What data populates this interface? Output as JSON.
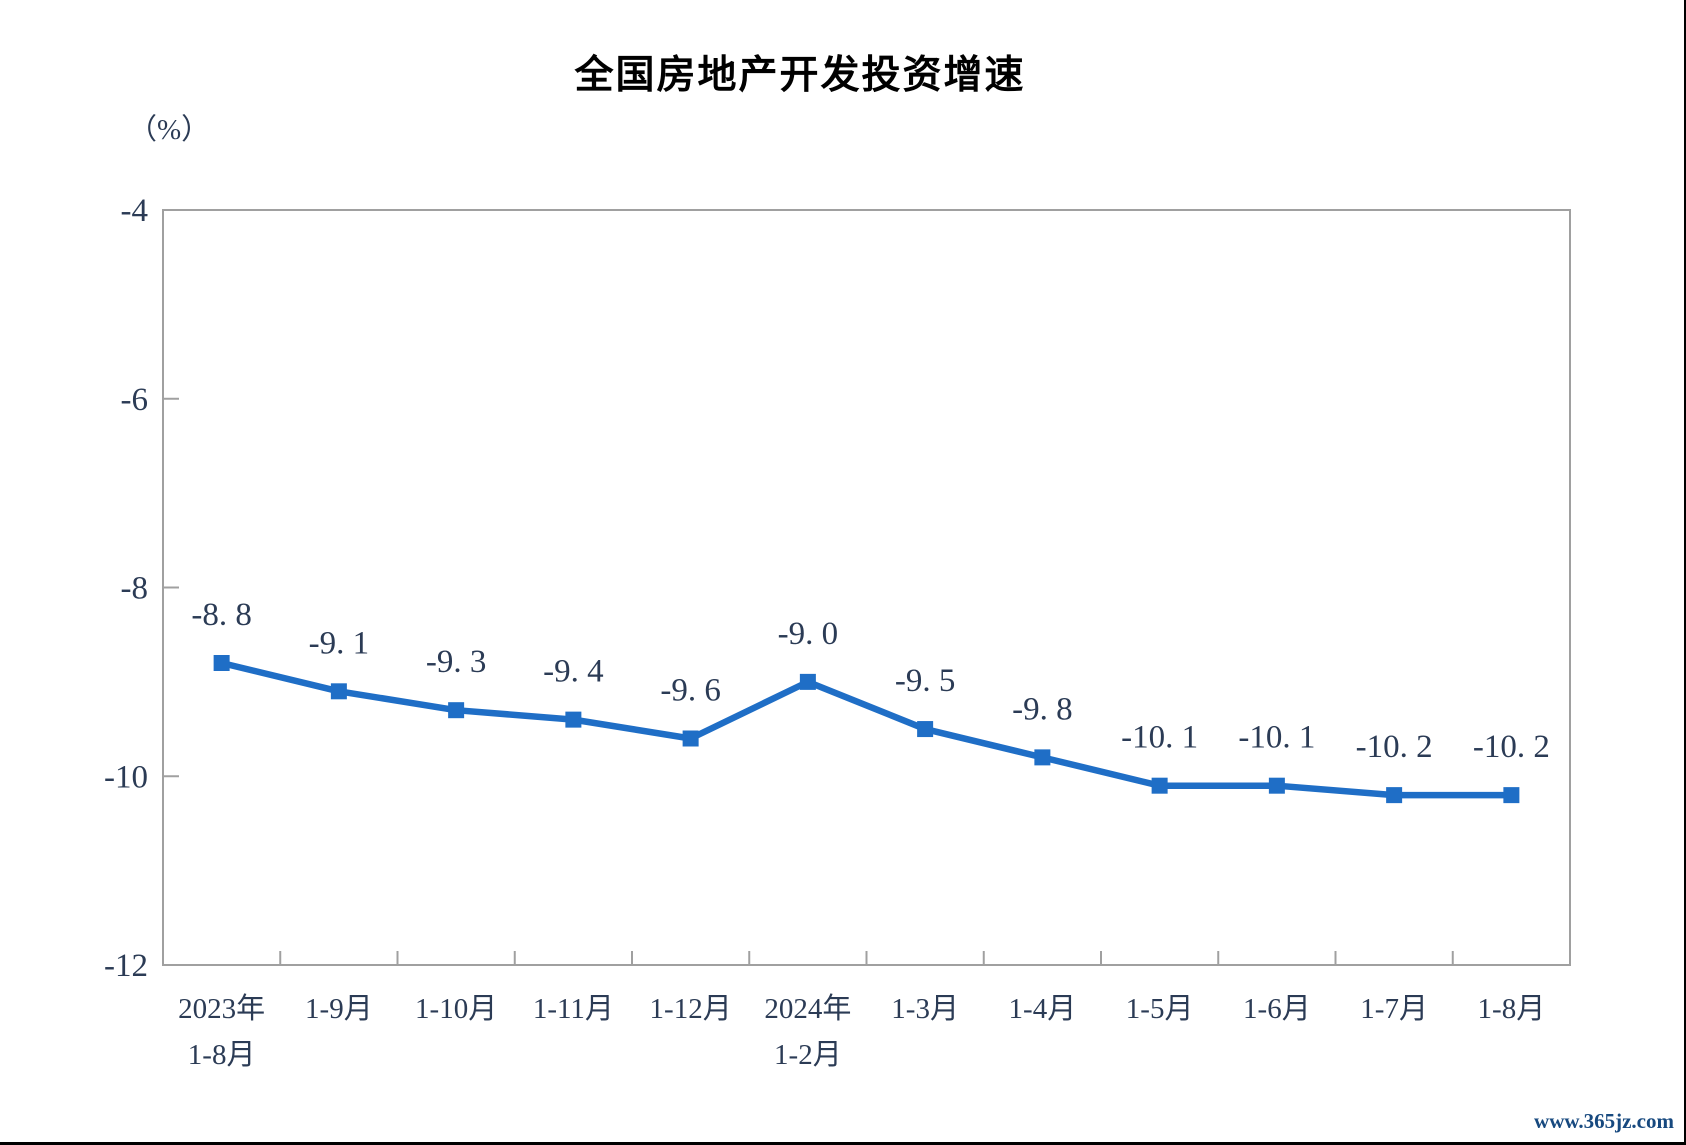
{
  "page": {
    "watermark": "www.365jz.com"
  },
  "chart_data": {
    "type": "line",
    "title": "全国房地产开发投资增速",
    "unit_label": "（%）",
    "categories": [
      [
        "2023年",
        "1-8月"
      ],
      [
        "1-9月"
      ],
      [
        "1-10月"
      ],
      [
        "1-11月"
      ],
      [
        "1-12月"
      ],
      [
        "2024年",
        "1-2月"
      ],
      [
        "1-3月"
      ],
      [
        "1-4月"
      ],
      [
        "1-5月"
      ],
      [
        "1-6月"
      ],
      [
        "1-7月"
      ],
      [
        "1-8月"
      ]
    ],
    "values": [
      -8.8,
      -9.1,
      -9.3,
      -9.4,
      -9.6,
      -9.0,
      -9.5,
      -9.8,
      -10.1,
      -10.1,
      -10.2,
      -10.2
    ],
    "point_labels": [
      "-8. 8",
      "-9. 1",
      "-9. 3",
      "-9. 4",
      "-9. 6",
      "-9. 0",
      "-9. 5",
      "-9. 8",
      "-10. 1",
      "-10. 1",
      "-10. 2",
      "-10. 2"
    ],
    "xlabel": "",
    "ylabel": "（%）",
    "ylim": [
      -12,
      -4
    ],
    "yticks": [
      -4,
      -6,
      -8,
      -10,
      -12
    ],
    "grid": false,
    "legend": "none",
    "line_color": "#1f6ec6",
    "marker": "square",
    "marker_color": "#1f6ec6",
    "label_color": "#2b3b55",
    "axis_color": "#a0a0a0"
  }
}
